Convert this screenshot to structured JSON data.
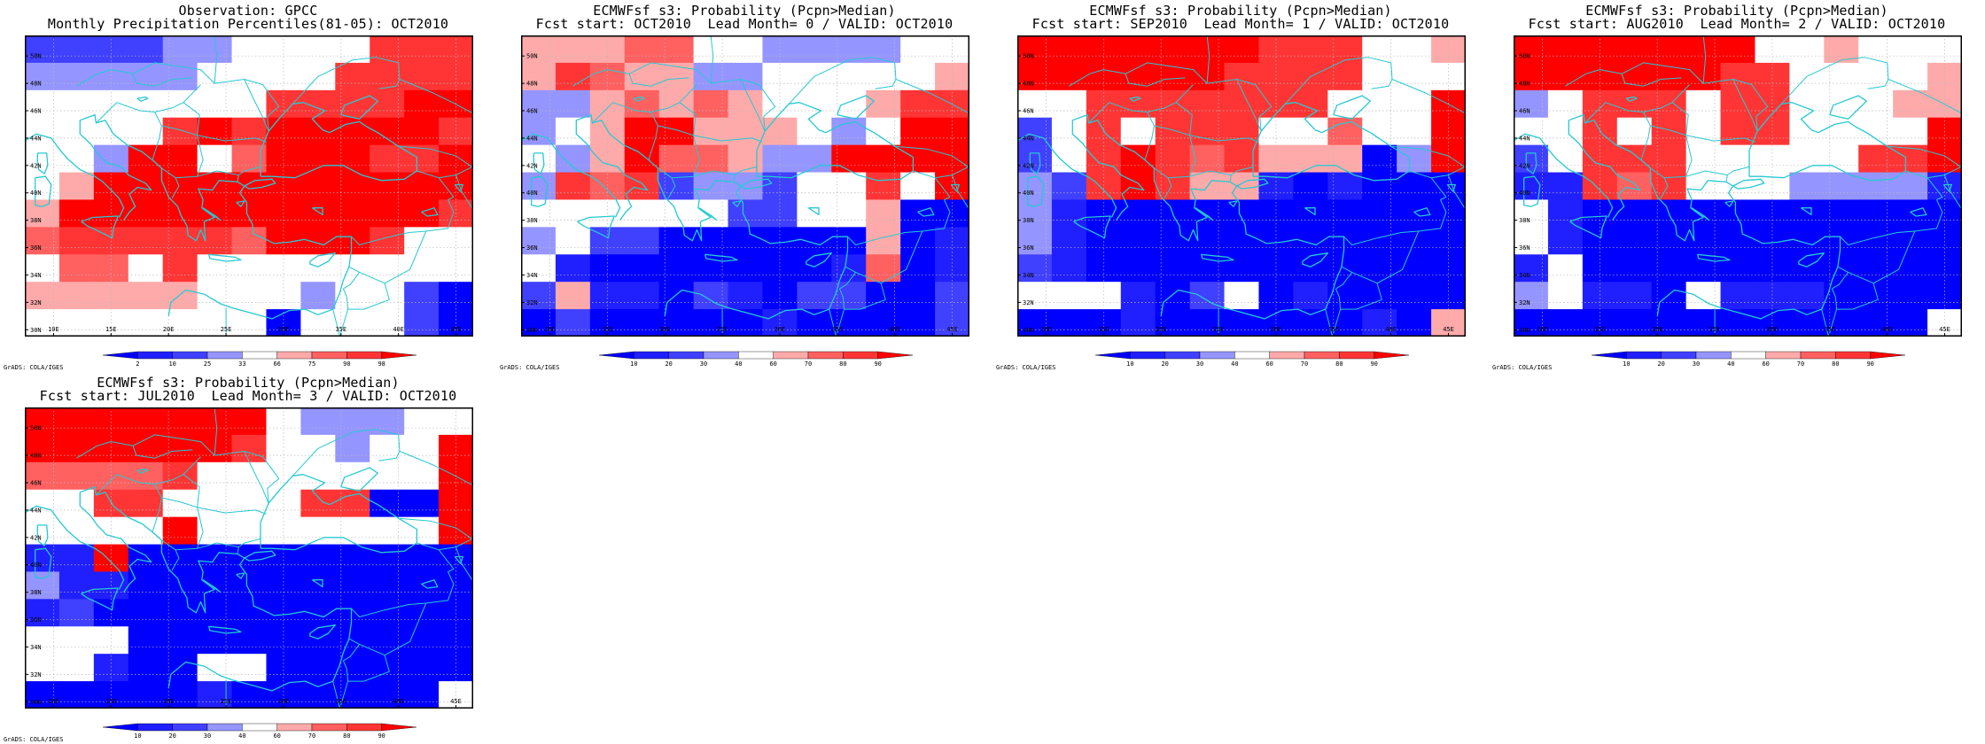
{
  "colors": {
    "coast": "#26c9d1",
    "grid": "#b9b9b9",
    "scale": [
      "#0000ff",
      "#2020ff",
      "#4040ff",
      "#9595ff",
      "#ffffff",
      "#ffaaaa",
      "#ff6060",
      "#ff3535",
      "#ff0000"
    ]
  },
  "credit": "GrADS: COLA/IGES",
  "axes": {
    "lon_labels": [
      "10E",
      "15E",
      "20E",
      "25E",
      "30E",
      "35E",
      "40E",
      "45E"
    ],
    "lat_labels": [
      "50N",
      "48N",
      "46N",
      "44N",
      "42N",
      "40N",
      "38N",
      "36N",
      "34N",
      "32N",
      "30N"
    ]
  },
  "legends": {
    "obs": [
      "2",
      "10",
      "25",
      "33",
      "66",
      "75",
      "90",
      "98"
    ],
    "prob": [
      "10",
      "20",
      "30",
      "40",
      "60",
      "70",
      "80",
      "90"
    ]
  },
  "panels": [
    {
      "title1": "Observation: GPCC",
      "title2": "Monthly Precipitation Percentiles(81-05): OCT2010",
      "legend": "obs",
      "grid": [
        "2222334444777",
        "3333344447777",
        "4444444777788",
        "4444787888887",
        "4438846888778",
        "4588888888888",
        "5888888888887",
        "6777776888744",
        "4664744444444",
        "5555544434420",
        "4444444044420"
      ]
    },
    {
      "title1": "ECMWFsf s3: Probability (Pcpn>Median)",
      "title2": "Fcst start: OCT2010  Lead Month= 0 / VALID: OCT2010",
      "legend": "prob",
      "grid": [
        "5556644333344",
        "5765533444445",
        "3356565444577",
        "3458855543488",
        "4358665338888",
        "3767233244748",
        "4444442244500",
        "3422000000501",
        "4100000001601",
        "2511021022002",
        "0200000100002"
      ]
    },
    {
      "title1": "ECMWFsf s3: Probability (Pcpn>Median)",
      "title2": "Fcst start: SEP2010  Lead Month= 1 / VALID: OCT2010",
      "legend": "prob",
      "grid": [
        "8888888777445",
        "8888887777444",
        "4477777774448",
        "2474777446448",
        "2478767555038",
        "3278755101000",
        "3100000000000",
        "3100000000000",
        "2100000000000",
        "4441024010000",
        "0001000000105"
      ]
    },
    {
      "title1": "ECMWFsf s3: Probability (Pcpn>Median)",
      "title2": "Fcst start: AUG2010  Lead Month= 2 / VALID: OCT2010",
      "legend": "prob",
      "grid": [
        "8888888445444",
        "8888887744445",
        "3477747744455",
        "4474747744448",
        "2477744444778",
        "1176744433331",
        "4100000000000",
        "4100000000000",
        "1400000000000",
        "3411041110000",
        "0000000000004"
      ]
    },
    {
      "title1": "ECMWFsf s3: Probability (Pcpn>Median)",
      "title2": "Fcst start: JUL2010  Lead Month= 3 / VALID: OCT2010",
      "legend": "prob",
      "grid": [
        "8888888433344",
        "8888887443448",
        "6666744444448",
        "4477444477008",
        "4444844444448",
        "1180000000000",
        "3110000000000",
        "1200000000000",
        "4440000000000",
        "4410044000000",
        "0000010000004"
      ]
    }
  ]
}
